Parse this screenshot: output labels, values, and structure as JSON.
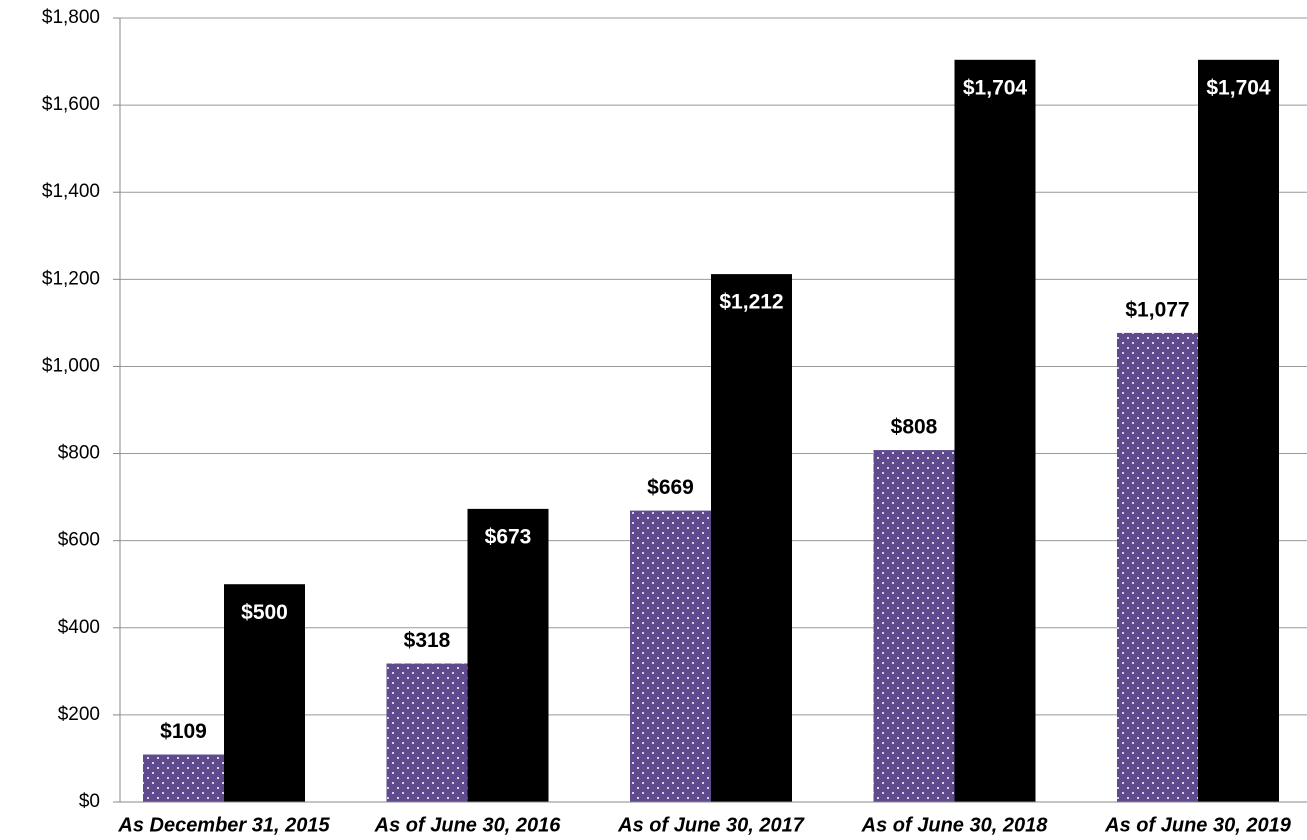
{
  "chart_data": {
    "type": "bar",
    "categories": [
      "As December 31, 2015",
      "As of June 30, 2016",
      "As of June 30, 2017",
      "As of June 30, 2018",
      "As of June 30, 2019"
    ],
    "series": [
      {
        "color": "#5e4a8c",
        "values": [
          109,
          318,
          669,
          808,
          1077
        ],
        "value_labels": [
          "$109",
          "$318",
          "$669",
          "$808",
          "$1,077"
        ]
      },
      {
        "color": "#000000",
        "values": [
          500,
          673,
          1212,
          1704,
          1704
        ],
        "value_labels": [
          "$500",
          "$673",
          "$1,212",
          "$1,704",
          "$1,704"
        ]
      }
    ],
    "ylim": [
      0,
      1800
    ],
    "yticks": [
      {
        "value": 0,
        "label": "$0"
      },
      {
        "value": 200,
        "label": "$200"
      },
      {
        "value": 400,
        "label": "$400"
      },
      {
        "value": 600,
        "label": "$600"
      },
      {
        "value": 800,
        "label": "$800"
      },
      {
        "value": 1000,
        "label": "$1,000"
      },
      {
        "value": 1200,
        "label": "$1,200"
      },
      {
        "value": 1400,
        "label": "$1,400"
      },
      {
        "value": 1600,
        "label": "$1,600"
      },
      {
        "value": 1800,
        "label": "$1,800"
      }
    ],
    "grid": true
  }
}
